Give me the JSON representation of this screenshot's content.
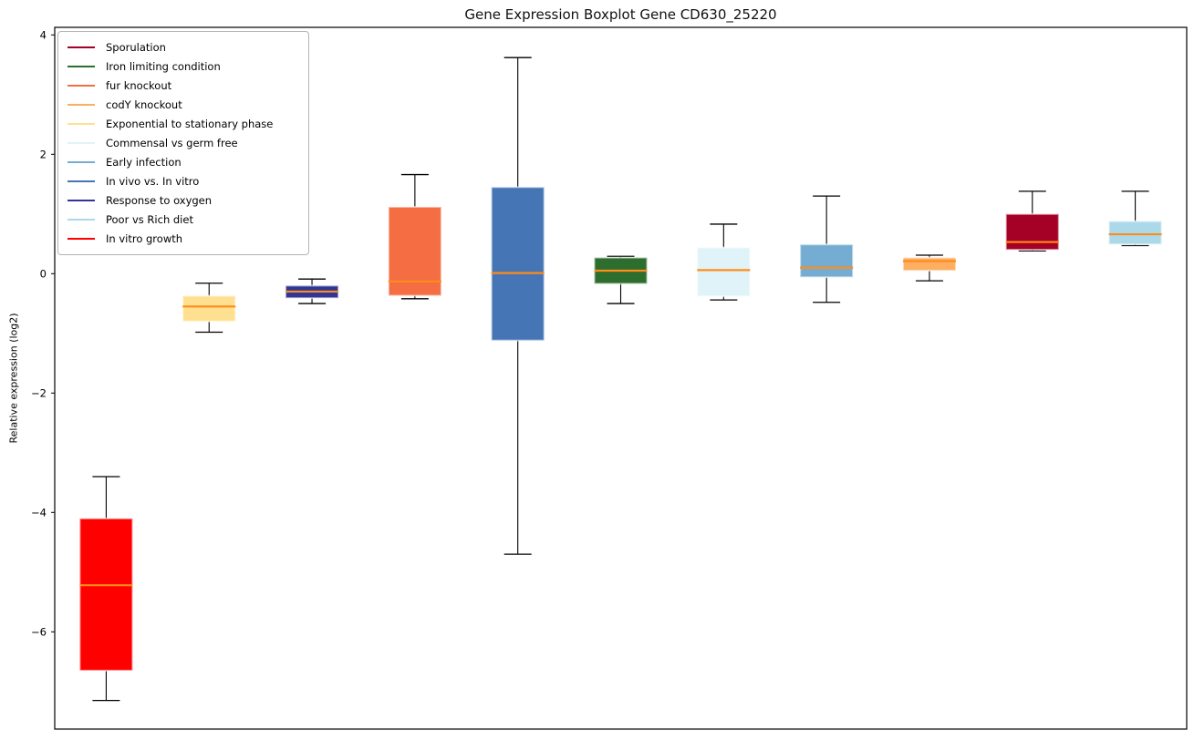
{
  "title": "Gene Expression Boxplot Gene CD630_25220",
  "y_axis": {
    "label": "Relative expression (log2)",
    "ticks": [
      4,
      2,
      0,
      -2,
      -4,
      -6
    ],
    "tick_labels": [
      "4",
      "2",
      "0",
      "−2",
      "−4",
      "−6"
    ]
  },
  "legend": {
    "position": "upper left",
    "items": [
      {
        "label": "Sporulation",
        "color": "#a50026"
      },
      {
        "label": "Iron limiting condition",
        "color": "#2d6e2e"
      },
      {
        "label": "fur knockout",
        "color": "#f46d43"
      },
      {
        "label": "codY knockout",
        "color": "#fdae61"
      },
      {
        "label": "Exponential to stationary phase",
        "color": "#fee090"
      },
      {
        "label": "Commensal vs germ free",
        "color": "#e0f3f8"
      },
      {
        "label": "Early infection",
        "color": "#74add1"
      },
      {
        "label": "In vivo vs. In vitro",
        "color": "#4575b4"
      },
      {
        "label": "Response to oxygen",
        "color": "#313695"
      },
      {
        "label": "Poor vs Rich diet",
        "color": "#abd9e9"
      },
      {
        "label": "In vitro growth",
        "color": "#ff0000"
      }
    ]
  },
  "chart_data": {
    "type": "boxplot",
    "title": "Gene Expression Boxplot Gene CD630_25220",
    "xlabel": "",
    "ylabel": "Relative expression (log2)",
    "ylim": [
      -7.63,
      4.13
    ],
    "yticks": [
      4,
      2,
      0,
      -2,
      -4,
      -6
    ],
    "grid": false,
    "legend_position": "upper left",
    "median_color": "#ff8c1a",
    "series": [
      {
        "name": "In vitro growth",
        "color": "#ff0000",
        "whisker_low": -7.15,
        "q1": -6.65,
        "median": -5.22,
        "q3": -4.1,
        "whisker_high": -3.4
      },
      {
        "name": "Exponential to stationary phase",
        "color": "#fee090",
        "whisker_low": -0.98,
        "q1": -0.8,
        "median": -0.55,
        "q3": -0.37,
        "whisker_high": -0.16
      },
      {
        "name": "Response to oxygen",
        "color": "#313695",
        "whisker_low": -0.5,
        "q1": -0.41,
        "median": -0.3,
        "q3": -0.2,
        "whisker_high": -0.09
      },
      {
        "name": "fur knockout",
        "color": "#f46d43",
        "whisker_low": -0.42,
        "q1": -0.37,
        "median": -0.13,
        "q3": 1.12,
        "whisker_high": 1.66
      },
      {
        "name": "In vivo vs. In vitro",
        "color": "#4575b4",
        "whisker_low": -4.7,
        "q1": -1.12,
        "median": 0.01,
        "q3": 1.45,
        "whisker_high": 3.62
      },
      {
        "name": "Iron limiting condition",
        "color": "#2d6e2e",
        "whisker_low": -0.5,
        "q1": -0.17,
        "median": 0.05,
        "q3": 0.27,
        "whisker_high": 0.29
      },
      {
        "name": "Commensal vs germ free",
        "color": "#e0f3f8",
        "whisker_low": -0.44,
        "q1": -0.38,
        "median": 0.06,
        "q3": 0.44,
        "whisker_high": 0.83
      },
      {
        "name": "Early infection",
        "color": "#74add1",
        "whisker_low": -0.48,
        "q1": -0.06,
        "median": 0.1,
        "q3": 0.49,
        "whisker_high": 1.3
      },
      {
        "name": "codY knockout",
        "color": "#fdae61",
        "whisker_low": -0.12,
        "q1": 0.05,
        "median": 0.21,
        "q3": 0.27,
        "whisker_high": 0.31
      },
      {
        "name": "Sporulation",
        "color": "#a50026",
        "whisker_low": 0.38,
        "q1": 0.4,
        "median": 0.53,
        "q3": 1.0,
        "whisker_high": 1.38
      },
      {
        "name": "Poor vs Rich diet",
        "color": "#abd9e9",
        "whisker_low": 0.47,
        "q1": 0.49,
        "median": 0.66,
        "q3": 0.88,
        "whisker_high": 1.38
      }
    ]
  }
}
